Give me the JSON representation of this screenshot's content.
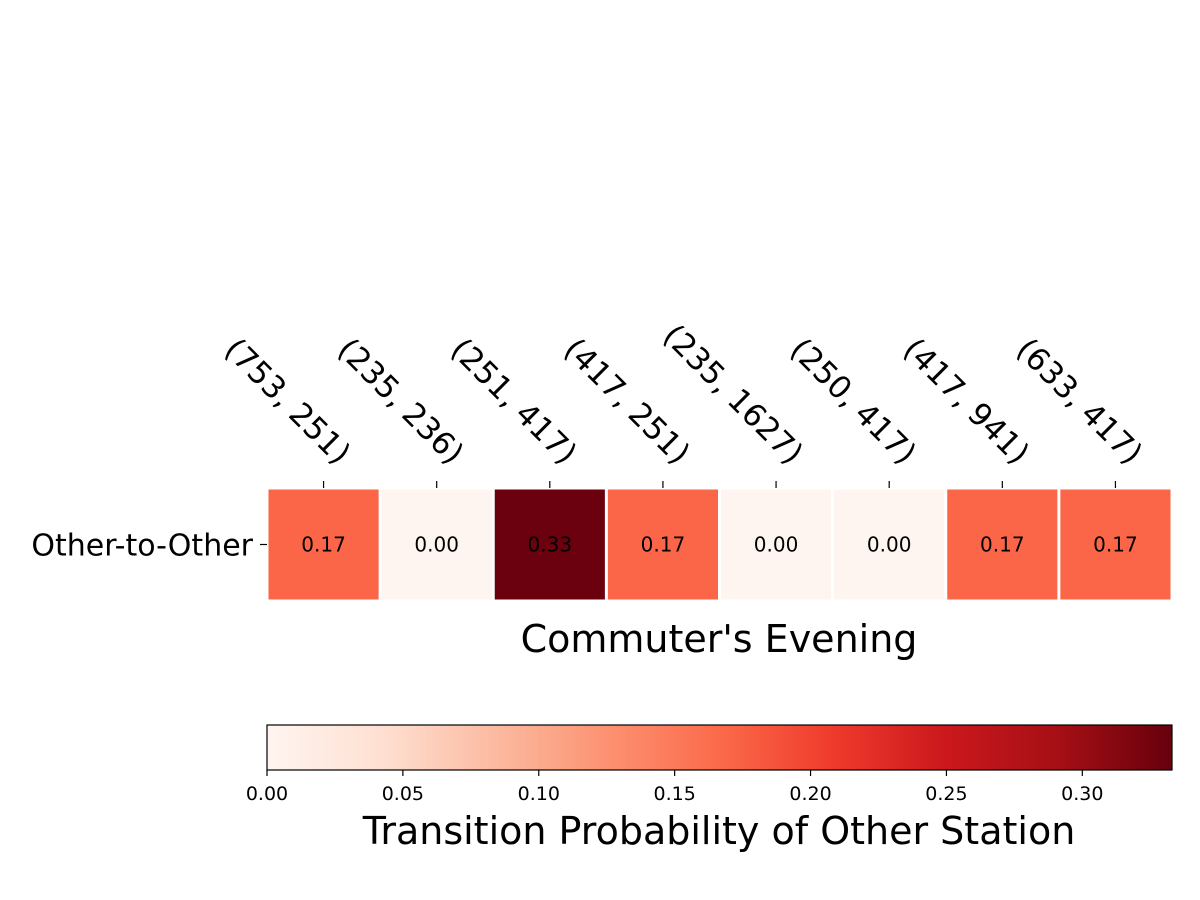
{
  "chart_data": {
    "type": "heatmap",
    "title": "Commuter's Evening",
    "row_labels": [
      "Other-to-Other"
    ],
    "column_labels": [
      "(753, 251)",
      "(235, 236)",
      "(251, 417)",
      "(417, 251)",
      "(235, 1627)",
      "(250, 417)",
      "(417, 941)",
      "(633, 417)"
    ],
    "values": [
      [
        0.17,
        0.0,
        0.33,
        0.17,
        0.0,
        0.0,
        0.17,
        0.17
      ]
    ],
    "value_labels": [
      "0.17",
      "0.00",
      "0.33",
      "0.17",
      "0.00",
      "0.00",
      "0.17",
      "0.17"
    ],
    "colormap": "Reds",
    "colorbar": {
      "label": "Transition Probability of Other Station",
      "range": [
        0,
        0.333
      ],
      "ticks": [
        0.0,
        0.05,
        0.1,
        0.15,
        0.2,
        0.25,
        0.3
      ],
      "tick_labels": [
        "0.00",
        "0.05",
        "0.10",
        "0.15",
        "0.20",
        "0.25",
        "0.30"
      ],
      "orientation": "horizontal",
      "colors": [
        "#fff5f0",
        "#fee0d2",
        "#fcbba1",
        "#fc9272",
        "#fb6a4a",
        "#ef3b2c",
        "#cb181d",
        "#a50f15",
        "#67000d"
      ]
    },
    "grid": false,
    "cell_gap_color": "#ffffff"
  }
}
